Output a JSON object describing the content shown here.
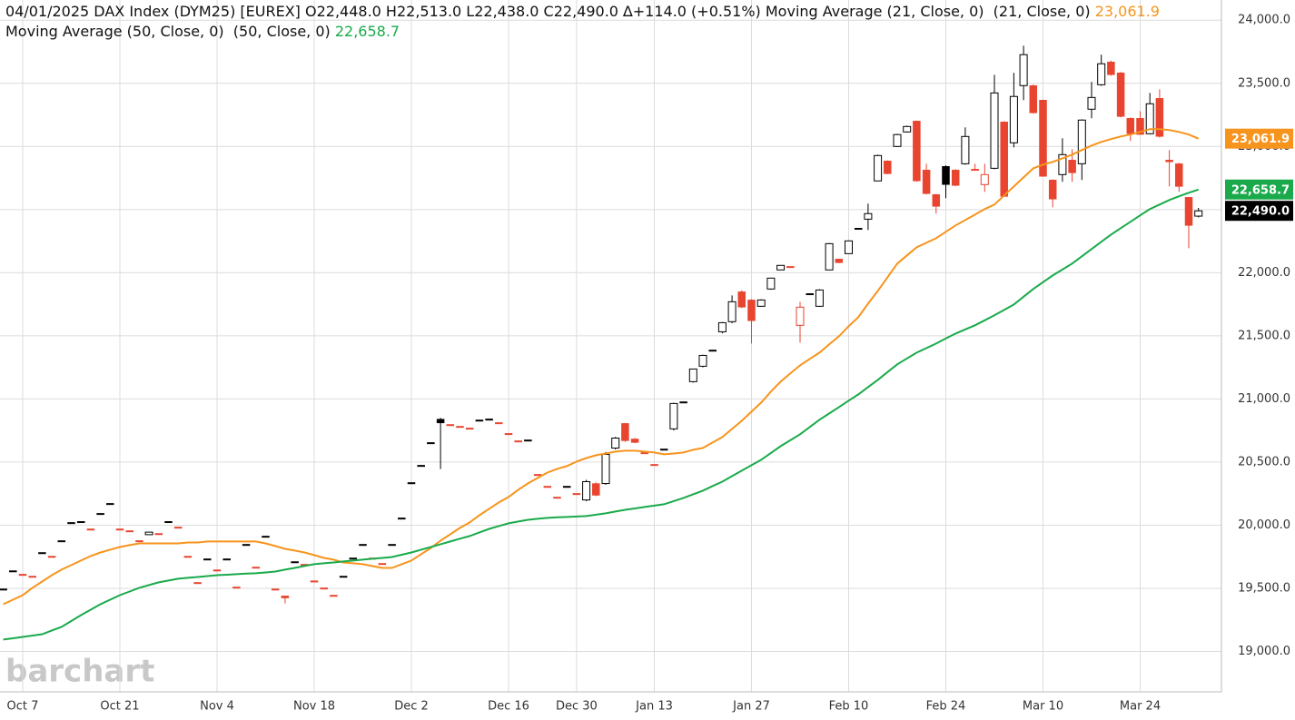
{
  "chart_data": {
    "type": "candlestick",
    "title": "04/01/2025 DAX Index (DYM25) [EUREX] O22,448.0 H22,513.0 L22,438.0 C22,490.0 ∆+114.0 (+0.51%)",
    "watermark": "barchart",
    "categories": [
      null,
      null,
      "Oct 7",
      null,
      null,
      null,
      null,
      null,
      null,
      null,
      null,
      null,
      "Oct 21",
      null,
      null,
      null,
      null,
      null,
      null,
      null,
      null,
      null,
      "Nov 4",
      null,
      null,
      null,
      null,
      null,
      null,
      null,
      null,
      null,
      "Nov 18",
      null,
      null,
      null,
      null,
      null,
      null,
      null,
      null,
      null,
      "Dec 2",
      null,
      null,
      null,
      null,
      null,
      null,
      null,
      null,
      null,
      "Dec 16",
      null,
      null,
      null,
      null,
      null,
      null,
      "Dec 30",
      null,
      null,
      null,
      null,
      null,
      null,
      null,
      "Jan 13",
      null,
      null,
      null,
      null,
      null,
      null,
      null,
      null,
      null,
      "Jan 27",
      null,
      null,
      null,
      null,
      null,
      null,
      null,
      null,
      null,
      "Feb 10",
      null,
      null,
      null,
      null,
      null,
      null,
      null,
      null,
      null,
      "Feb 24",
      null,
      null,
      null,
      null,
      null,
      null,
      null,
      null,
      null,
      "Mar 10",
      null,
      null,
      null,
      null,
      null,
      null,
      null,
      null,
      null,
      "Mar 24",
      null,
      null,
      null,
      null,
      null,
      null
    ],
    "open": [
      19496,
      19640,
      19612,
      19597,
      19784,
      19755,
      19878,
      20022,
      20030,
      19971,
      20094,
      20173,
      19971,
      19957,
      19878,
      19925,
      19935,
      20030,
      19986,
      19755,
      19547,
      19734,
      19647,
      19734,
      19511,
      19849,
      19669,
      19914,
      19496,
      19440,
      19712,
      19691,
      19560,
      19504,
      19446,
      19597,
      19741,
      19849,
      19741,
      19698,
      19849,
      20058,
      20338,
      20475,
      20655,
      20840,
      20798,
      20784,
      20770,
      20834,
      20842,
      20813,
      20727,
      20669,
      20676,
      20403,
      20309,
      20223,
      20309,
      20252,
      20200,
      20330,
      20330,
      20611,
      20806,
      20683,
      20576,
      20482,
      20604,
      20763,
      20978,
      21137,
      21259,
      21388,
      21532,
      21612,
      21849,
      21784,
      21734,
      21871,
      22022,
      22050,
      21583,
      21835,
      21734,
      22022,
      22108,
      22151,
      22353,
      22424,
      22727,
      22885,
      23000,
      23115,
      23201,
      22813,
      22619,
      22842,
      22813,
      22863,
      22820,
      22698,
      22827,
      23194,
      23029,
      23482,
      23482,
      23367,
      22734,
      22777,
      22892,
      22863,
      23295,
      23489,
      23669,
      23583,
      23223,
      23223,
      23101,
      23381,
      22892,
      22863,
      22597,
      22448
    ],
    "high": [
      19496,
      19640,
      19612,
      19597,
      19784,
      19755,
      19878,
      20022,
      20030,
      19971,
      20094,
      20173,
      19971,
      19957,
      19878,
      19945,
      19935,
      20030,
      19986,
      19755,
      19547,
      19734,
      19647,
      19734,
      19511,
      19849,
      19669,
      19914,
      19496,
      19440,
      19712,
      19691,
      19560,
      19504,
      19446,
      19597,
      19741,
      19849,
      19741,
      19698,
      19849,
      20058,
      20338,
      20475,
      20655,
      20850,
      20798,
      20784,
      20770,
      20834,
      20842,
      20813,
      20727,
      20669,
      20676,
      20403,
      20309,
      20223,
      20309,
      20252,
      20360,
      20340,
      20580,
      20700,
      20810,
      20690,
      20576,
      20482,
      20604,
      20970,
      20978,
      21240,
      21350,
      21388,
      21610,
      21820,
      21860,
      21790,
      21790,
      21960,
      22060,
      22050,
      21770,
      21835,
      21870,
      22235,
      22110,
      22255,
      22353,
      22547,
      22935,
      22890,
      23100,
      23165,
      23205,
      22863,
      22625,
      22850,
      22820,
      23151,
      22863,
      22863,
      23568,
      23200,
      23583,
      23798,
      23490,
      23370,
      22740,
      23065,
      22978,
      23215,
      23511,
      23727,
      23680,
      23590,
      23230,
      23280,
      23424,
      23453,
      22971,
      22870,
      22600,
      22513
    ],
    "low": [
      19496,
      19640,
      19612,
      19597,
      19784,
      19755,
      19878,
      20022,
      20030,
      19971,
      20094,
      20173,
      19971,
      19957,
      19878,
      19925,
      19935,
      20030,
      19986,
      19755,
      19547,
      19734,
      19647,
      19734,
      19511,
      19849,
      19669,
      19914,
      19496,
      19380,
      19712,
      19691,
      19560,
      19504,
      19446,
      19597,
      19741,
      19849,
      19741,
      19698,
      19849,
      20058,
      20338,
      20475,
      20655,
      20445,
      20798,
      20784,
      20770,
      20834,
      20842,
      20813,
      20727,
      20669,
      20676,
      20403,
      20309,
      20223,
      20309,
      20252,
      20190,
      20230,
      20320,
      20600,
      20660,
      20650,
      20576,
      20482,
      20604,
      20750,
      20978,
      21130,
      21250,
      21388,
      21520,
      21600,
      21720,
      21439,
      21730,
      21865,
      22020,
      22050,
      21446,
      21835,
      21730,
      22020,
      22075,
      22150,
      22353,
      22338,
      22725,
      22780,
      22995,
      23110,
      22720,
      22620,
      22468,
      22590,
      22685,
      22855,
      22815,
      22640,
      22820,
      22600,
      22993,
      23367,
      23260,
      22760,
      22518,
      22720,
      22720,
      22734,
      23223,
      23480,
      23560,
      23230,
      23043,
      23095,
      23095,
      23070,
      22683,
      22640,
      22194,
      22438
    ],
    "close": [
      19496,
      19640,
      19612,
      19597,
      19784,
      19755,
      19878,
      20022,
      20030,
      19971,
      20094,
      20173,
      19971,
      19957,
      19878,
      19945,
      19935,
      20030,
      19986,
      19755,
      19547,
      19734,
      19647,
      19734,
      19511,
      19849,
      19669,
      19914,
      19496,
      19424,
      19712,
      19691,
      19560,
      19504,
      19446,
      19597,
      19741,
      19849,
      19741,
      19698,
      19849,
      20058,
      20338,
      20475,
      20655,
      20810,
      20798,
      20784,
      20770,
      20834,
      20842,
      20813,
      20727,
      20669,
      20676,
      20403,
      20309,
      20223,
      20309,
      20252,
      20345,
      20237,
      20561,
      20690,
      20669,
      20655,
      20576,
      20482,
      20604,
      20964,
      20978,
      21237,
      21345,
      21388,
      21604,
      21770,
      21727,
      21619,
      21784,
      21957,
      22058,
      22050,
      21727,
      21835,
      21863,
      22230,
      22079,
      22252,
      22353,
      22468,
      22928,
      22784,
      23094,
      23158,
      22727,
      22626,
      22525,
      22698,
      22691,
      23079,
      22820,
      22777,
      23424,
      22604,
      23396,
      23727,
      23266,
      22763,
      22583,
      22935,
      22791,
      23209,
      23388,
      23655,
      23568,
      23237,
      23101,
      23095,
      23338,
      23079,
      22878,
      22683,
      22374,
      22490
    ],
    "close_label": "22,490.0",
    "up_color": "#000000",
    "down_color": "#e8442f",
    "series": [
      {
        "name": "Moving Average (21, Close, 0)  (21, Close, 0)",
        "color": "#f7941d",
        "last_label": "23,061.9",
        "values": [
          19374,
          19410,
          19446,
          19504,
          19554,
          19604,
          19648,
          19684,
          19720,
          19756,
          19784,
          19806,
          19827,
          19842,
          19856,
          19856,
          19856,
          19856,
          19856,
          19863,
          19863,
          19871,
          19871,
          19871,
          19871,
          19871,
          19871,
          19856,
          19835,
          19813,
          19799,
          19784,
          19763,
          19741,
          19727,
          19705,
          19698,
          19691,
          19676,
          19662,
          19662,
          19691,
          19720,
          19770,
          19820,
          19878,
          19928,
          19979,
          20022,
          20079,
          20130,
          20180,
          20223,
          20281,
          20331,
          20374,
          20417,
          20446,
          20468,
          20504,
          20532,
          20554,
          20568,
          20583,
          20590,
          20590,
          20583,
          20576,
          20561,
          20568,
          20576,
          20597,
          20612,
          20655,
          20698,
          20763,
          20827,
          20899,
          20971,
          21058,
          21137,
          21202,
          21266,
          21317,
          21367,
          21432,
          21496,
          21576,
          21648,
          21755,
          21856,
          21964,
          22072,
          22137,
          22202,
          22237,
          22273,
          22324,
          22374,
          22417,
          22460,
          22504,
          22540,
          22612,
          22683,
          22755,
          22827,
          22856,
          22878,
          22906,
          22935,
          22971,
          23007,
          23036,
          23058,
          23079,
          23094,
          23115,
          23137,
          23137,
          23130,
          23115,
          23094,
          23061.9
        ]
      },
      {
        "name": "Moving Average (50, Close, 0)  (50, Close, 0)",
        "color": "#1aaa4b",
        "last_label": "22,658.7",
        "values": [
          19094,
          19104,
          19115,
          19126,
          19137,
          19166,
          19194,
          19241,
          19288,
          19331,
          19374,
          19410,
          19446,
          19475,
          19504,
          19526,
          19547,
          19562,
          19576,
          19583,
          19590,
          19597,
          19604,
          19608,
          19612,
          19616,
          19619,
          19626,
          19633,
          19648,
          19662,
          19677,
          19691,
          19698,
          19705,
          19713,
          19720,
          19727,
          19734,
          19741,
          19748,
          19766,
          19784,
          19806,
          19827,
          19849,
          19871,
          19893,
          19914,
          19943,
          19971,
          19993,
          20015,
          20029,
          20043,
          20051,
          20058,
          20062,
          20065,
          20069,
          20072,
          20083,
          20094,
          20108,
          20122,
          20133,
          20144,
          20155,
          20166,
          20191,
          20216,
          20245,
          20274,
          20310,
          20345,
          20389,
          20432,
          20475,
          20518,
          20572,
          20626,
          20673,
          20720,
          20778,
          20835,
          20885,
          20935,
          20986,
          21036,
          21094,
          21151,
          21213,
          21274,
          21321,
          21367,
          21403,
          21439,
          21479,
          21518,
          21551,
          21583,
          21623,
          21662,
          21705,
          21748,
          21810,
          21871,
          21925,
          21978,
          22025,
          22072,
          22130,
          22187,
          22245,
          22302,
          22353,
          22403,
          22454,
          22504,
          22540,
          22576,
          22605,
          22633,
          22658.7
        ]
      }
    ],
    "ylim": [
      18680,
      24160
    ],
    "yticks": [
      {
        "value": 19000,
        "label": "19,000.0"
      },
      {
        "value": 19500,
        "label": "19,500.0"
      },
      {
        "value": 20000,
        "label": "20,000.0"
      },
      {
        "value": 20500,
        "label": "20,500.0"
      },
      {
        "value": 21000,
        "label": "21,000.0"
      },
      {
        "value": 21500,
        "label": "21,500.0"
      },
      {
        "value": 22000,
        "label": "22,000.0"
      },
      {
        "value": 22500,
        "label": "22,500.0"
      },
      {
        "value": 23000,
        "label": "23,000.0"
      },
      {
        "value": 23500,
        "label": "23,500.0"
      },
      {
        "value": 24000,
        "label": "24,000.0"
      }
    ],
    "grid": true
  }
}
